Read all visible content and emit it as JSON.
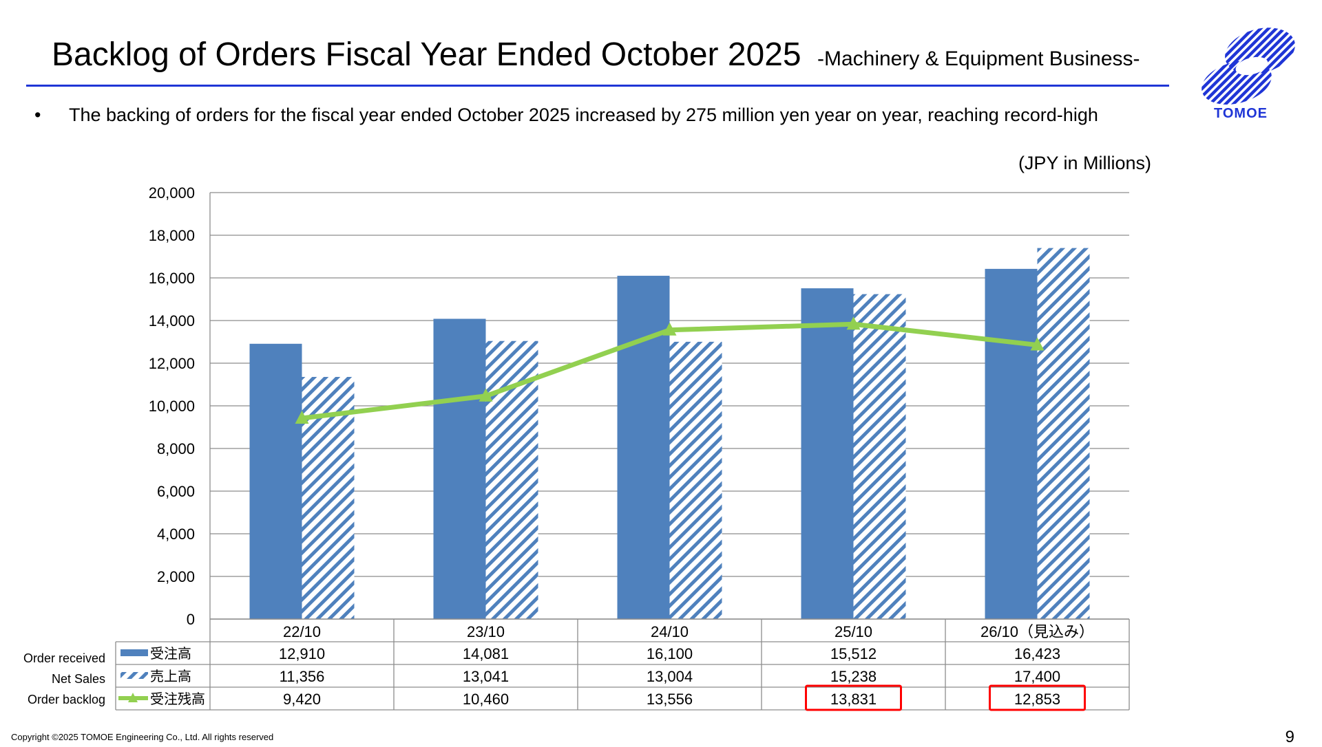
{
  "header": {
    "title": "Backlog of Orders Fiscal Year Ended October 2025",
    "subtitle": "-Machinery & Equipment Business-",
    "bullet": "The backing of orders for the fiscal year ended October 2025 increased by 275 million yen year on year, reaching record-high",
    "unit": "(JPY in Millions)"
  },
  "logo": {
    "text": "TOMOE",
    "color": "#1f35d6"
  },
  "chart_data": {
    "type": "bar",
    "categories": [
      "22/10",
      "23/10",
      "24/10",
      "25/10",
      "26/10（見込み）"
    ],
    "ylim": [
      0,
      20000
    ],
    "yticks": [
      "0",
      "2,000",
      "4,000",
      "6,000",
      "8,000",
      "10,000",
      "12,000",
      "14,000",
      "16,000",
      "18,000",
      "20,000"
    ],
    "grid": true,
    "series": [
      {
        "name": "受注高",
        "label_en": "Order received",
        "kind": "bar",
        "style": "solid",
        "color": "#4f81bd",
        "values": [
          12910,
          14081,
          16100,
          15512,
          16423
        ],
        "value_labels": [
          "12,910",
          "14,081",
          "16,100",
          "15,512",
          "16,423"
        ]
      },
      {
        "name": "売上高",
        "label_en": "Net Sales",
        "kind": "bar",
        "style": "hatched",
        "color": "#4f81bd",
        "values": [
          11356,
          13041,
          13004,
          15238,
          17400
        ],
        "value_labels": [
          "11,356",
          "13,041",
          "13,004",
          "15,238",
          "17,400"
        ]
      },
      {
        "name": "受注残高",
        "label_en": "Order backlog",
        "kind": "line",
        "color": "#92d050",
        "values": [
          9420,
          10460,
          13556,
          13831,
          12853
        ],
        "value_labels": [
          "9,420",
          "10,460",
          "13,556",
          "13,831",
          "12,853"
        ]
      }
    ],
    "highlighted_cells": [
      {
        "series": 2,
        "category": 3
      },
      {
        "series": 2,
        "category": 4
      }
    ],
    "highlight_color": "#ff0000"
  },
  "footer": {
    "copyright": "Copyright ©2025 TOMOE Engineering Co., Ltd. All rights reserved",
    "page": "9"
  }
}
